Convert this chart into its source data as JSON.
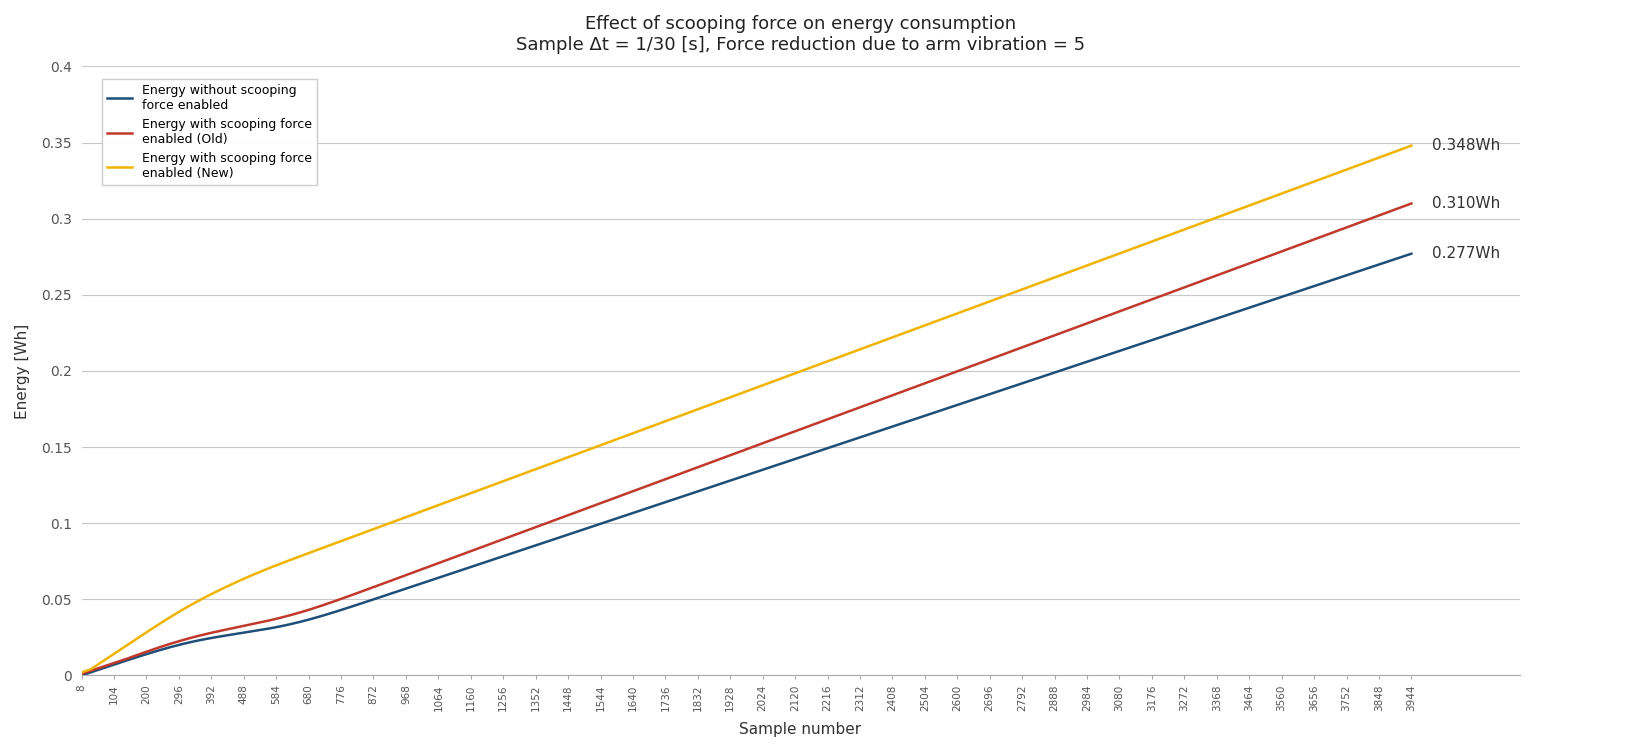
{
  "title_line1": "Effect of scooping force on energy consumption",
  "title_line2": "Sample Δt = 1/30 [s], Force reduction due to arm vibration = 5",
  "xlabel": "Sample number",
  "ylabel": "Energy [Wh]",
  "ylim": [
    0,
    0.4
  ],
  "xlim_start": 8,
  "xlim_end": 3944,
  "annotation_labels": [
    "0.277Wh",
    "0.310Wh",
    "0.348Wh"
  ],
  "annotation_values": [
    0.277,
    0.31,
    0.348
  ],
  "legend_labels": [
    "Energy without scooping\nforce enabled",
    "Energy with scooping force\nenabled (Old)",
    "Energy with scooping force\nenabled (New)"
  ],
  "line_colors": [
    "#1f4e79",
    "#c0392b",
    "#f0b400"
  ],
  "background_color": "#ffffff",
  "yticks": [
    0,
    0.05,
    0.1,
    0.15,
    0.2,
    0.25,
    0.3,
    0.35,
    0.4
  ],
  "grid_color": "#c8c8c8",
  "line_width": 1.8,
  "title_fontsize": 13,
  "axis_label_fontsize": 11,
  "tick_fontsize": 7.5,
  "legend_fontsize": 9,
  "annotation_fontsize": 11
}
